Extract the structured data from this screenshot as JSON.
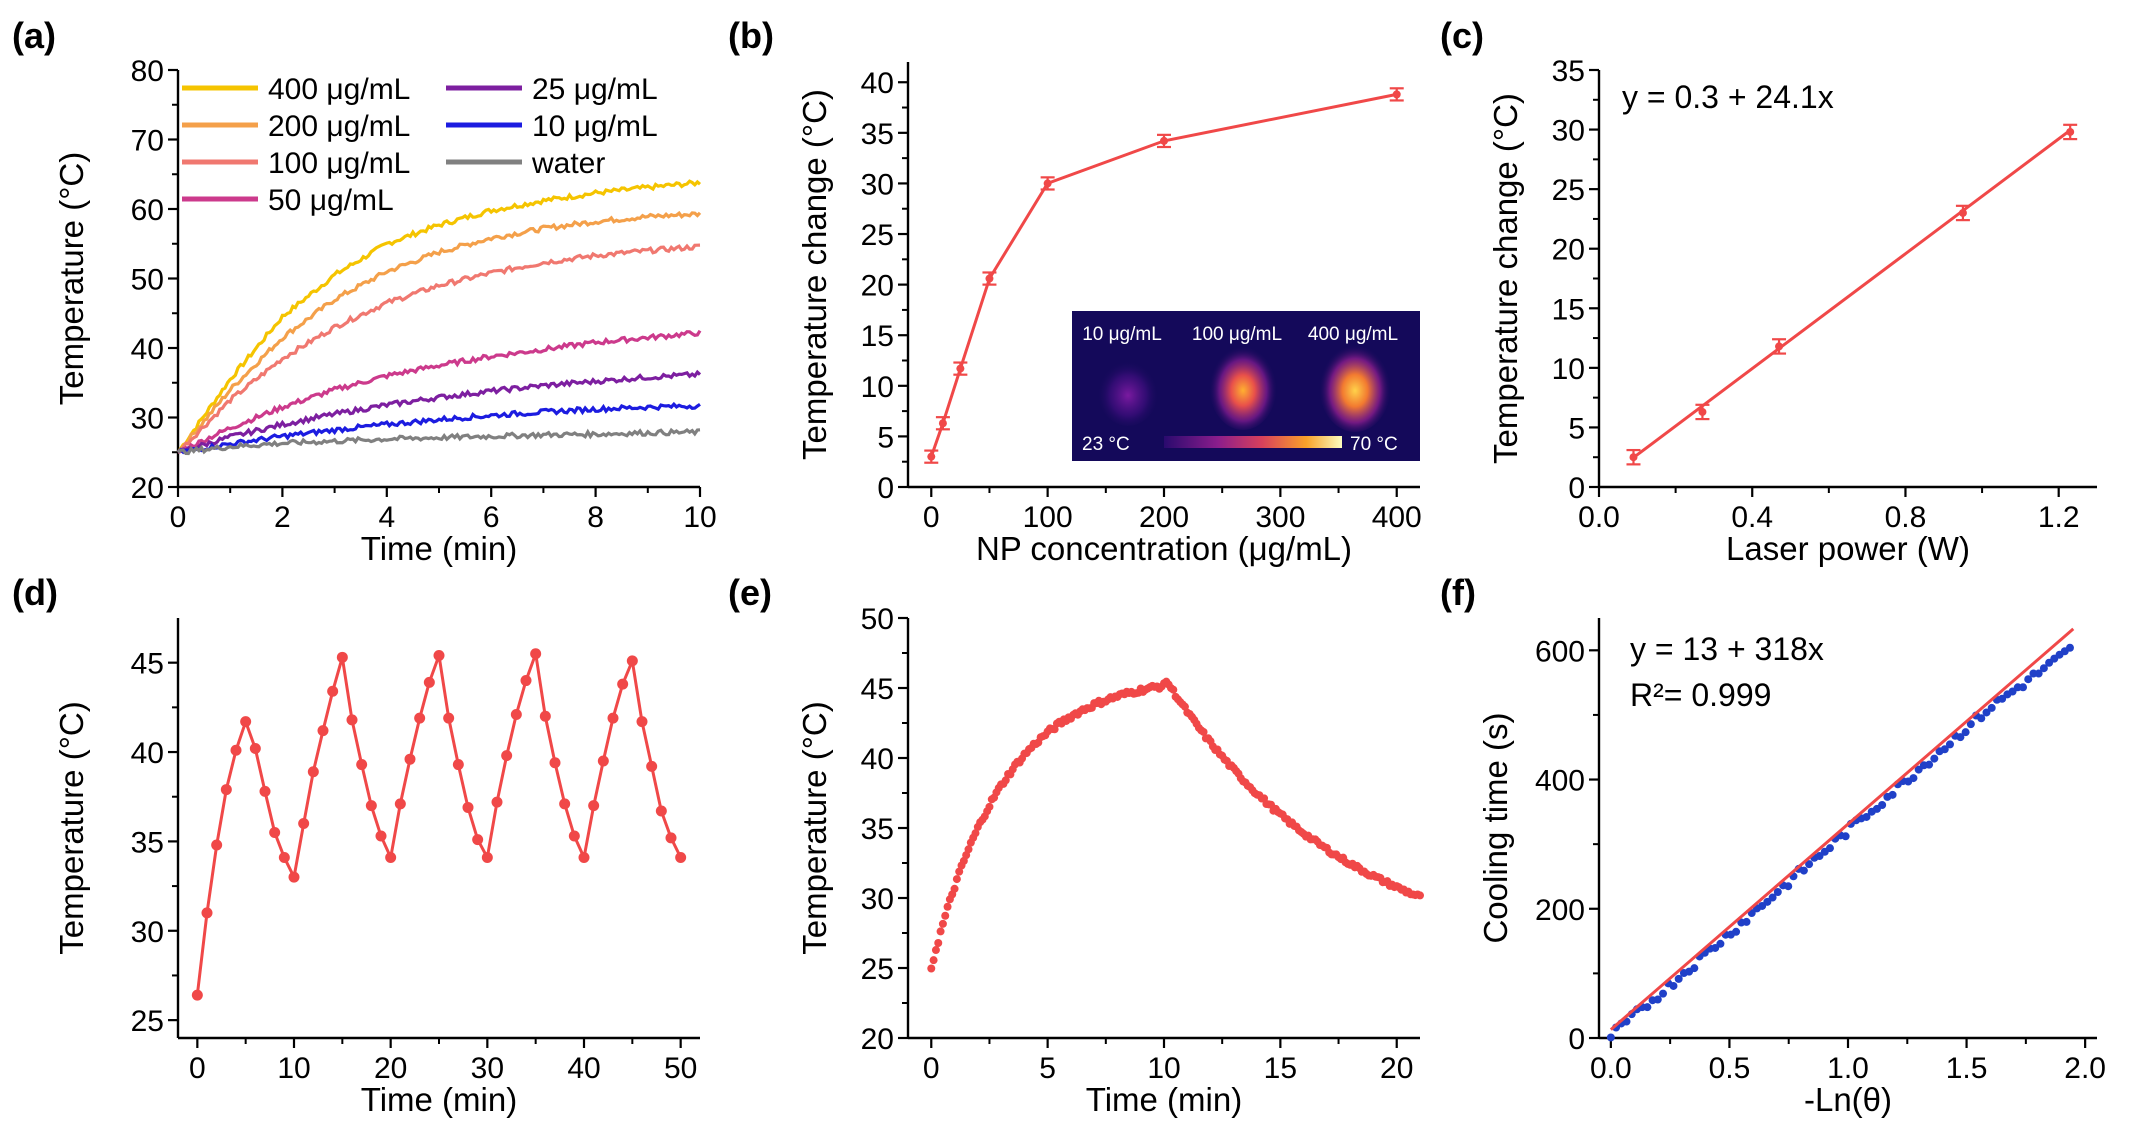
{
  "chart_data": [
    {
      "panel": "(a)",
      "type": "line",
      "xlabel": "Time (min)",
      "ylabel": "Temperature (°C)",
      "xlim": [
        0,
        10
      ],
      "ylim": [
        20,
        80
      ],
      "xticks": [
        0,
        2,
        4,
        6,
        8,
        10
      ],
      "yticks": [
        20,
        30,
        40,
        50,
        60,
        70,
        80
      ],
      "legend_position": "top-left",
      "x": [
        0,
        1,
        2,
        3,
        4,
        5,
        6,
        7,
        8,
        9,
        10
      ],
      "series": [
        {
          "name": "400 μg/mL",
          "color": "#f5c400",
          "values": [
            25,
            35.5,
            44.5,
            50.5,
            55,
            57.7,
            59.8,
            61.2,
            62.3,
            63.1,
            63.8
          ]
        },
        {
          "name": "200 μg/mL",
          "color": "#f4a04a",
          "values": [
            25,
            34,
            41.5,
            47,
            51,
            53.8,
            55.8,
            57.2,
            58.2,
            58.9,
            59.3
          ]
        },
        {
          "name": "100 μg/mL",
          "color": "#f07870",
          "values": [
            25,
            32.5,
            38.5,
            43,
            46.5,
            49,
            50.8,
            52.3,
            53.3,
            54,
            54.6
          ]
        },
        {
          "name": "50 μg/mL",
          "color": "#cc3a8c",
          "values": [
            25,
            28.5,
            31.5,
            34,
            36,
            37.5,
            38.8,
            39.8,
            40.8,
            41.5,
            42.2
          ]
        },
        {
          "name": "25 μg/mL",
          "color": "#7d1fa0",
          "values": [
            25,
            27.2,
            29,
            30.5,
            31.8,
            32.9,
            33.8,
            34.6,
            35.2,
            35.8,
            36.2
          ]
        },
        {
          "name": "10 μg/mL",
          "color": "#1c1ce0",
          "values": [
            25,
            26.2,
            27.3,
            28.2,
            29,
            29.7,
            30.3,
            30.8,
            31.2,
            31.5,
            31.7
          ]
        },
        {
          "name": "water",
          "color": "#808080",
          "values": [
            25,
            25.8,
            26.3,
            26.6,
            26.9,
            27.1,
            27.3,
            27.5,
            27.6,
            27.8,
            27.9
          ]
        }
      ]
    },
    {
      "panel": "(b)",
      "type": "line",
      "xlabel": "NP concentration (μg/mL)",
      "ylabel": "Temperature change (°C)",
      "xlim": [
        -20,
        420
      ],
      "ylim": [
        0,
        42
      ],
      "xticks": [
        0,
        100,
        200,
        300,
        400
      ],
      "yticks": [
        0,
        5,
        10,
        15,
        20,
        25,
        30,
        35,
        40
      ],
      "color": "#f04848",
      "x": [
        0,
        10,
        25,
        50,
        100,
        200,
        400
      ],
      "values": [
        3,
        6.3,
        11.7,
        20.6,
        30,
        34.2,
        38.8
      ],
      "errors": [
        0.6,
        0.6,
        0.6,
        0.6,
        0.6,
        0.6,
        0.6
      ],
      "inset": {
        "labels": [
          "10 μg/mL",
          "100 μg/mL",
          "400 μg/mL"
        ],
        "scale_min": "23 °C",
        "scale_max": "70 °C"
      }
    },
    {
      "panel": "(c)",
      "type": "scatter",
      "xlabel": "Laser power (W)",
      "ylabel": "Temperature change (°C)",
      "xlim": [
        0,
        1.3
      ],
      "ylim": [
        0,
        35
      ],
      "xticks": [
        0.0,
        0.4,
        0.8,
        1.2
      ],
      "yticks": [
        0,
        5,
        10,
        15,
        20,
        25,
        30,
        35
      ],
      "color": "#f04848",
      "x": [
        0.09,
        0.27,
        0.47,
        0.95,
        1.23
      ],
      "values": [
        2.5,
        6.3,
        11.8,
        23,
        29.8
      ],
      "errors": [
        0.6,
        0.6,
        0.6,
        0.6,
        0.6
      ],
      "fit": {
        "intercept": 0.3,
        "slope": 24.1,
        "x_range": [
          0.09,
          1.23
        ],
        "equation": "y = 0.3 + 24.1x"
      }
    },
    {
      "panel": "(d)",
      "type": "line",
      "xlabel": "Time (min)",
      "ylabel": "Temperature (°C)",
      "xlim": [
        -2,
        52
      ],
      "ylim": [
        24,
        47.5
      ],
      "xticks": [
        0,
        10,
        20,
        30,
        40,
        50
      ],
      "yticks": [
        25,
        30,
        35,
        40,
        45
      ],
      "color": "#f04848",
      "x": [
        0,
        1,
        2,
        3,
        4,
        5,
        6,
        7,
        8,
        9,
        10,
        11,
        12,
        13,
        14,
        15,
        16,
        17,
        18,
        19,
        20,
        21,
        22,
        23,
        24,
        25,
        26,
        27,
        28,
        29,
        30,
        31,
        32,
        33,
        34,
        35,
        36,
        37,
        38,
        39,
        40,
        41,
        42,
        43,
        44,
        45,
        46,
        47,
        48,
        49,
        50
      ],
      "values": [
        26.4,
        31,
        34.8,
        37.9,
        40.1,
        41.7,
        40.2,
        37.8,
        35.5,
        34.1,
        33,
        36,
        38.9,
        41.2,
        43.4,
        45.3,
        41.8,
        39.3,
        37,
        35.3,
        34.1,
        37.1,
        39.6,
        41.9,
        43.9,
        45.4,
        41.9,
        39.3,
        36.9,
        35.1,
        34.1,
        37.2,
        39.8,
        42.1,
        44,
        45.5,
        42,
        39.4,
        37.1,
        35.3,
        34.1,
        37,
        39.5,
        41.9,
        43.8,
        45.1,
        41.7,
        39.2,
        36.7,
        35.2,
        34.1
      ]
    },
    {
      "panel": "(e)",
      "type": "scatter",
      "xlabel": "Time (min)",
      "ylabel": "Temperature (°C)",
      "xlim": [
        -1,
        21
      ],
      "ylim": [
        20,
        50
      ],
      "xticks": [
        0,
        5,
        10,
        15,
        20
      ],
      "yticks": [
        20,
        25,
        30,
        35,
        40,
        45,
        50
      ],
      "color": "#f04848",
      "heating": {
        "x_range": [
          0,
          10
        ],
        "t_start": 25,
        "t_max": 46,
        "tau": 3.1
      },
      "cooling": {
        "x_range": [
          10,
          21
        ],
        "t_start": 45.8,
        "t_ambient": 25,
        "tau": 7.8
      }
    },
    {
      "panel": "(f)",
      "type": "scatter",
      "xlabel": "-Ln(θ)",
      "ylabel": "Cooling time (s)",
      "xlim": [
        -0.05,
        2.05
      ],
      "ylim": [
        0,
        650
      ],
      "xticks": [
        0.0,
        0.5,
        1.0,
        1.5,
        2.0
      ],
      "yticks": [
        0,
        200,
        400,
        600
      ],
      "color": "#2040c8",
      "fit_color": "#f04848",
      "x_range": [
        0,
        1.95
      ],
      "fit": {
        "intercept": 13,
        "slope": 318,
        "x_range": [
          0,
          1.95
        ],
        "equation": "y = 13 + 318x",
        "r2": "R²= 0.999"
      }
    }
  ]
}
